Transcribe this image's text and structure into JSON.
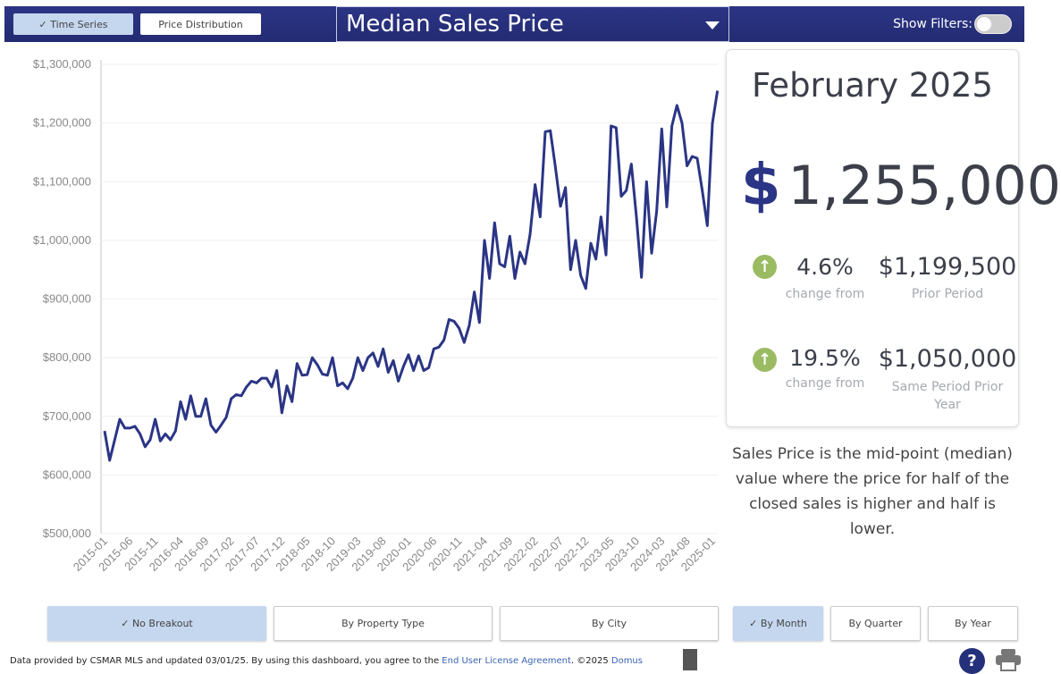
{
  "header": {
    "tabs": [
      {
        "label": "Time Series",
        "active": true
      },
      {
        "label": "Price Distribution",
        "active": false
      }
    ],
    "metric_select": "Median Sales Price",
    "show_filters_label": "Show Filters:",
    "show_filters_on": false
  },
  "summary": {
    "period": "February 2025",
    "currency_symbol": "$",
    "value": "1,255,000",
    "changes": [
      {
        "direction": "up",
        "pct": "4.6%",
        "pct_label": "change from",
        "amount": "$1,199,500",
        "amount_label": "Prior Period"
      },
      {
        "direction": "up",
        "pct": "19.5%",
        "pct_label": "change from",
        "amount": "$1,050,000",
        "amount_label": "Same Period Prior Year"
      }
    ],
    "description": "Sales Price is the mid-point (median) value where the price for half of the closed sales is higher and half is lower."
  },
  "breakout_buttons": [
    {
      "label": "No Breakout",
      "active": true
    },
    {
      "label": "By Property Type",
      "active": false
    },
    {
      "label": "By City",
      "active": false
    }
  ],
  "period_buttons": [
    {
      "label": "By Month",
      "active": true
    },
    {
      "label": "By Quarter",
      "active": false
    },
    {
      "label": "By Year",
      "active": false
    }
  ],
  "footer": {
    "text": "Data provided by CSMAR MLS and updated 03/01/25.  By using this dashboard, you agree to the ",
    "link": "End User License Agreement",
    "text2": ".  ©2025 ",
    "brand": "Domus"
  },
  "colors": {
    "header": "#2b3585",
    "line": "#2b3585",
    "active_button": "#c5d7ef",
    "up_arrow": "#9abb62"
  },
  "chart_data": {
    "type": "line",
    "start": "2015-01",
    "end": "2025-02",
    "frequency": "monthly",
    "ylim": [
      500000,
      1300000
    ],
    "yticks": [
      "$500,000",
      "$600,000",
      "$700,000",
      "$800,000",
      "$900,000",
      "$1,000,000",
      "$1,100,000",
      "$1,200,000",
      "$1,300,000"
    ],
    "xticks": [
      "2015-01",
      "2015-06",
      "2015-11",
      "2016-04",
      "2016-09",
      "2017-02",
      "2017-07",
      "2017-12",
      "2018-05",
      "2018-10",
      "2019-03",
      "2019-08",
      "2020-01",
      "2020-06",
      "2020-11",
      "2021-04",
      "2021-09",
      "2022-02",
      "2022-07",
      "2022-12",
      "2023-05",
      "2023-10",
      "2024-03",
      "2024-08",
      "2025-01"
    ],
    "grid": "horizontal",
    "values": [
      675000,
      625000,
      660000,
      695000,
      680000,
      680000,
      683000,
      670000,
      648000,
      660000,
      695000,
      658000,
      670000,
      660000,
      675000,
      725000,
      695000,
      735000,
      700000,
      700000,
      730000,
      685000,
      673000,
      685000,
      698000,
      730000,
      737000,
      735000,
      750000,
      760000,
      757000,
      765000,
      765000,
      750000,
      778000,
      706000,
      752000,
      725000,
      790000,
      770000,
      771000,
      800000,
      788000,
      772000,
      770000,
      800000,
      752000,
      757000,
      747000,
      765000,
      800000,
      778000,
      800000,
      808000,
      785000,
      815000,
      775000,
      795000,
      760000,
      785000,
      805000,
      778000,
      803000,
      778000,
      783000,
      815000,
      818000,
      830000,
      865000,
      862000,
      850000,
      826000,
      855000,
      912000,
      860000,
      1000000,
      935000,
      1030000,
      960000,
      955000,
      1007000,
      935000,
      980000,
      960000,
      1010000,
      1095000,
      1040000,
      1185000,
      1187000,
      1125000,
      1058000,
      1090000,
      950000,
      1000000,
      940000,
      918000,
      995000,
      968000,
      1040000,
      975000,
      1195000,
      1192000,
      1075000,
      1085000,
      1130000,
      1040000,
      937000,
      1100000,
      978000,
      1050000,
      1190000,
      1057000,
      1195000,
      1230000,
      1200000,
      1127000,
      1143000,
      1140000,
      1085000,
      1025000,
      1199500,
      1255000
    ]
  }
}
